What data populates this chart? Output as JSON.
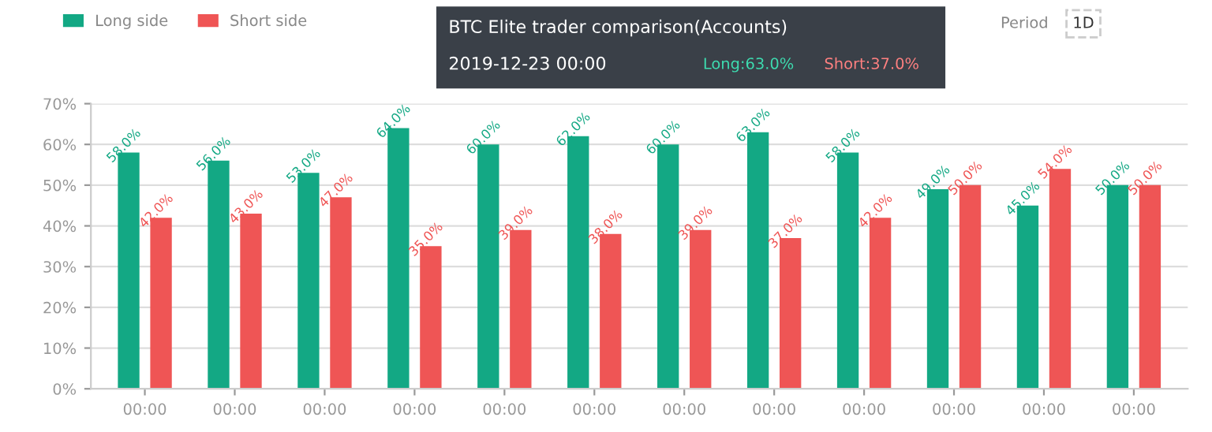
{
  "chart_data": {
    "type": "bar",
    "categories": [
      "00:00",
      "00:00",
      "00:00",
      "00:00",
      "00:00",
      "00:00",
      "00:00",
      "00:00",
      "00:00",
      "00:00",
      "00:00",
      "00:00"
    ],
    "series": [
      {
        "name": "Long side",
        "color": "#13a884",
        "values": [
          58,
          56,
          53,
          64,
          60,
          62,
          60,
          63,
          58,
          49,
          45,
          50
        ],
        "value_labels": [
          "58.0%",
          "56.0%",
          "53.0%",
          "64.0%",
          "60.0%",
          "62.0%",
          "60.0%",
          "63.0%",
          "58.0%",
          "49.0%",
          "45.0%",
          "50.0%"
        ]
      },
      {
        "name": "Short side",
        "color": "#ef5555",
        "values": [
          42,
          43,
          47,
          35,
          39,
          38,
          39,
          37,
          42,
          50,
          54,
          50
        ],
        "value_labels": [
          "42.0%",
          "43.0%",
          "47.0%",
          "35.0%",
          "39.0%",
          "38.0%",
          "39.0%",
          "37.0%",
          "42.0%",
          "50.0%",
          "54.0%",
          "50.0%"
        ]
      }
    ],
    "ylim": [
      0,
      70
    ],
    "yticks": [
      {
        "value": 0,
        "label": "0%"
      },
      {
        "value": 10,
        "label": "10%"
      },
      {
        "value": 20,
        "label": "20%"
      },
      {
        "value": 30,
        "label": "30%"
      },
      {
        "value": 40,
        "label": "40%"
      },
      {
        "value": 50,
        "label": "50%"
      },
      {
        "value": 60,
        "label": "60%"
      },
      {
        "value": 70,
        "label": "70%"
      }
    ],
    "grid": "y",
    "legend": "top left",
    "annotations": [
      "Period",
      "1D",
      "BTC Elite trader comparison(Accounts)",
      "2019-12-23 00:00",
      "Long:63.0%",
      "Short:37.0%"
    ]
  }
}
